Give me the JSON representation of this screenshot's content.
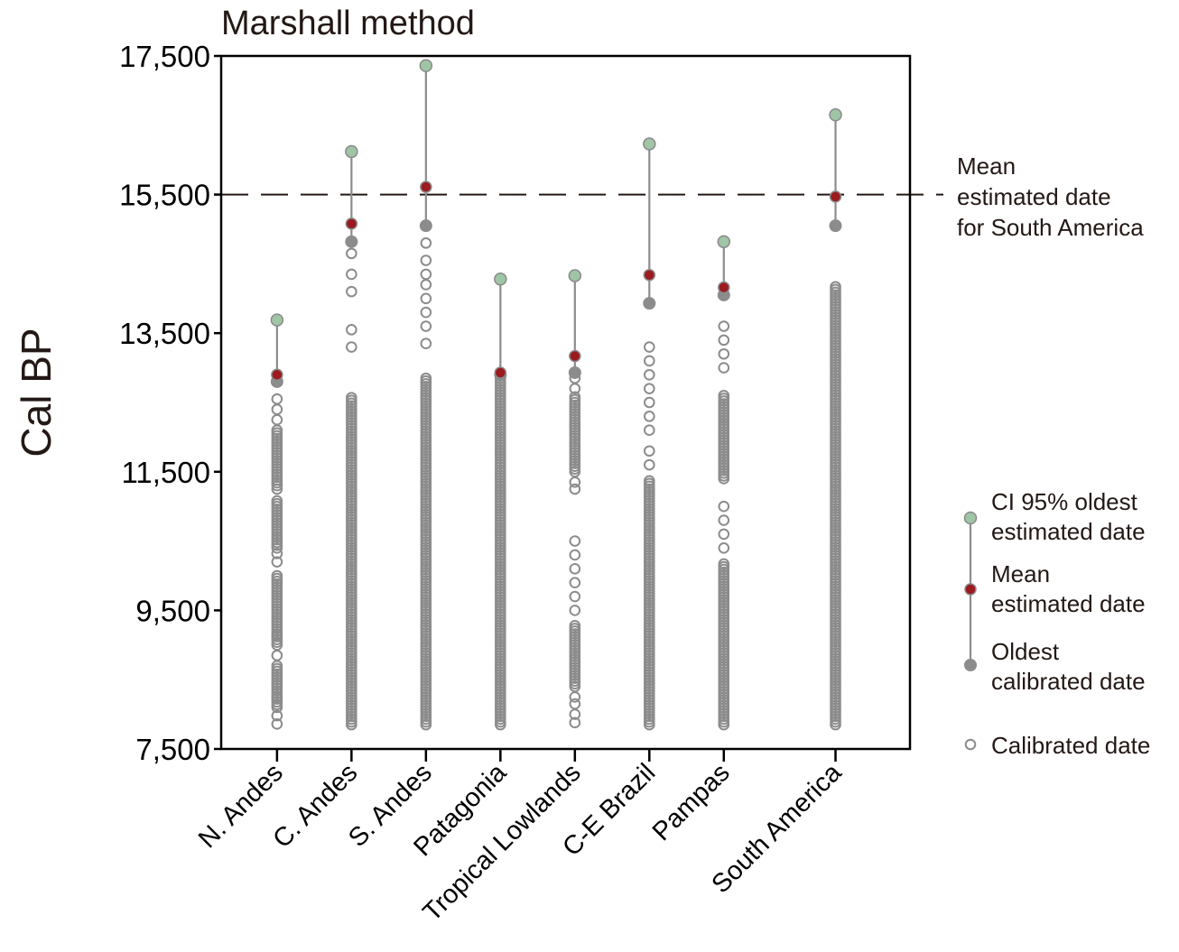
{
  "colors": {
    "ci": "#9fc5a5",
    "ci_edge": "#8a8a8a",
    "mean": "#9b1b1f",
    "oldest": "#8c8c8c",
    "calibrated_stroke": "#8c8c8c",
    "stem": "#8c8c8c",
    "axis": "#000000",
    "reference_line": "#231815"
  },
  "chart_data": {
    "type": "scatter",
    "title": "Marshall method",
    "xlabel": "",
    "ylabel": "Cal BP",
    "ylim": [
      7500,
      17500
    ],
    "yticks": [
      7500,
      9500,
      11500,
      13500,
      15500,
      17500
    ],
    "ytick_labels": [
      "7,500",
      "9,500",
      "11,500",
      "13,500",
      "15,500",
      "17,500"
    ],
    "grid": false,
    "reference_line": {
      "value": 15500,
      "label_lines": [
        "Mean",
        "estimated date",
        "for South America"
      ]
    },
    "categories": [
      "N. Andes",
      "C. Andes",
      "S. Andes",
      "Patagonia",
      "Tropical Lowlands",
      "C-E Brazil",
      "Pampas",
      "South America"
    ],
    "category_x": [
      1,
      2,
      3,
      4,
      5,
      6,
      7,
      8.5
    ],
    "xlim": [
      0.25,
      9.5
    ],
    "series": [
      {
        "name": "CI 95% oldest estimated date",
        "values": [
          13690,
          16120,
          17360,
          14280,
          14330,
          16230,
          14820,
          16650
        ]
      },
      {
        "name": "Mean estimated date",
        "values": [
          12900,
          15080,
          15610,
          12930,
          13170,
          14340,
          14160,
          15470
        ]
      },
      {
        "name": "Oldest calibrated date",
        "values": [
          12800,
          14820,
          15050,
          12900,
          12930,
          13930,
          14050,
          15050
        ]
      },
      {
        "name": "Calibrated date",
        "dense_ranges": [
          [
            [
              8100,
              8700
            ],
            [
              9000,
              10000
            ],
            [
              10400,
              11100
            ],
            [
              11300,
              12100
            ]
          ],
          [
            [
              7850,
              12600
            ]
          ],
          [
            [
              7850,
              12850
            ]
          ],
          [
            [
              7850,
              12850
            ]
          ],
          [
            [
              8400,
              9300
            ],
            [
              11500,
              12600
            ]
          ],
          [
            [
              7850,
              11400
            ]
          ],
          [
            [
              7850,
              10200
            ],
            [
              11400,
              12600
            ]
          ],
          [
            [
              7850,
              14200
            ]
          ]
        ],
        "sparse_values": [
          [
            7860,
            7980,
            8250,
            8420,
            8850,
            9150,
            10200,
            10320,
            11250,
            12250,
            12400,
            12550
          ],
          [
            13300,
            13550,
            14100,
            14350,
            14650
          ],
          [
            13350,
            13600,
            13800,
            14000,
            14200,
            14350,
            14550,
            14800
          ],
          [],
          [
            7880,
            8000,
            8150,
            8250,
            9500,
            9700,
            9900,
            10100,
            10300,
            10500,
            11250,
            11350,
            12700,
            12850
          ],
          [
            11600,
            11800,
            12100,
            12300,
            12500,
            12700,
            12900,
            13100,
            13300
          ],
          [
            10400,
            10600,
            10800,
            11000,
            13000,
            13200,
            13400,
            13600
          ],
          []
        ]
      }
    ],
    "legend": {
      "placement": "right",
      "entries": [
        {
          "key": "ci",
          "lines": [
            "CI 95% oldest",
            "estimated date"
          ]
        },
        {
          "key": "mean",
          "lines": [
            "Mean",
            "estimated date"
          ]
        },
        {
          "key": "oldest",
          "lines": [
            "Oldest",
            "calibrated date"
          ]
        },
        {
          "key": "calibrated",
          "lines": [
            "Calibrated date"
          ]
        }
      ]
    }
  }
}
